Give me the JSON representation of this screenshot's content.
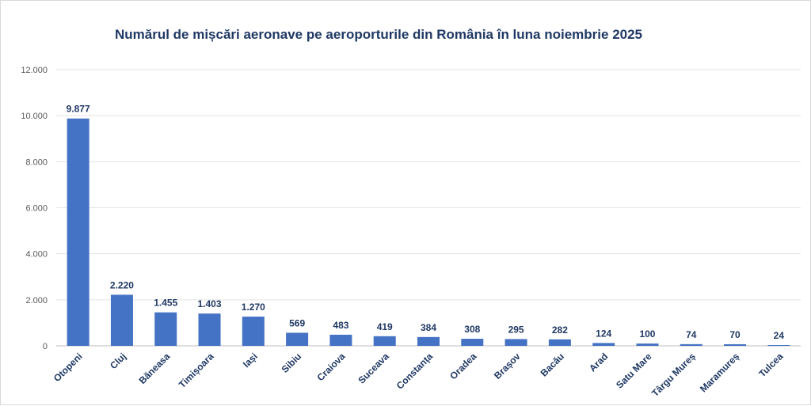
{
  "chart_data": {
    "type": "bar",
    "title": "Numărul de mișcări aeronave pe aeroporturile din România în luna noiembrie 2025",
    "categories": [
      "Otopeni",
      "Cluj",
      "Băneasa",
      "Timișoara",
      "Iași",
      "Sibiu",
      "Craiova",
      "Suceava",
      "Constanța",
      "Oradea",
      "Brașov",
      "Bacău",
      "Arad",
      "Satu Mare",
      "Târgu Mureș",
      "Maramureș",
      "Tulcea"
    ],
    "values": [
      9877,
      2220,
      1455,
      1403,
      1270,
      569,
      483,
      419,
      384,
      308,
      295,
      282,
      124,
      100,
      74,
      70,
      24
    ],
    "data_labels": [
      "9.877",
      "2.220",
      "1.455",
      "1.403",
      "1.270",
      "569",
      "483",
      "419",
      "384",
      "308",
      "295",
      "282",
      "124",
      "100",
      "74",
      "70",
      "24"
    ],
    "y_ticks": [
      0,
      2000,
      4000,
      6000,
      8000,
      10000,
      12000
    ],
    "y_tick_labels": [
      "0",
      "2.000",
      "4.000",
      "6.000",
      "8.000",
      "10.000",
      "12.000"
    ],
    "ylim": [
      0,
      12000
    ],
    "grid": true,
    "legend": "none",
    "bar_color": "#4472c4"
  }
}
